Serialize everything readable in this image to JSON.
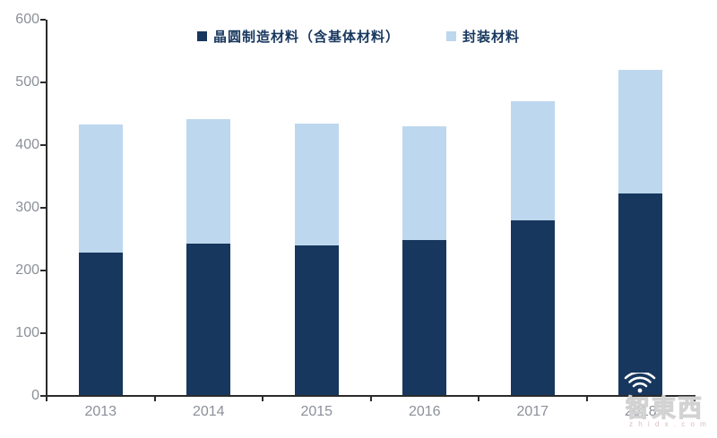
{
  "chart_data": {
    "type": "bar",
    "stacked": true,
    "title": "",
    "xlabel": "",
    "ylabel": "",
    "categories": [
      "2013",
      "2014",
      "2015",
      "2016",
      "2017",
      "2018"
    ],
    "series": [
      {
        "name": "晶圆制造材料（含基体材料）",
        "color": "#17375E",
        "values": [
          227,
          242,
          239,
          247,
          278,
          322
        ]
      },
      {
        "name": "封装材料",
        "color": "#BDD7EE",
        "values": [
          204,
          198,
          194,
          181,
          191,
          197
        ]
      }
    ],
    "totals": [
      431,
      440,
      433,
      428,
      469,
      519
    ],
    "ylim": [
      0,
      600
    ],
    "yticks": [
      0,
      100,
      200,
      300,
      400,
      500,
      600
    ],
    "grid": false,
    "legend_position": "top"
  },
  "colors": {
    "axis_line": "#2b2b2b",
    "tick_label": "#8C9099",
    "background": "#FFFFFF",
    "series_dark": "#17375E",
    "series_light": "#BDD7EE"
  },
  "watermark": {
    "icon": "wifi-icon",
    "text": "智東西",
    "subtext": "z h i d x . c o m"
  }
}
